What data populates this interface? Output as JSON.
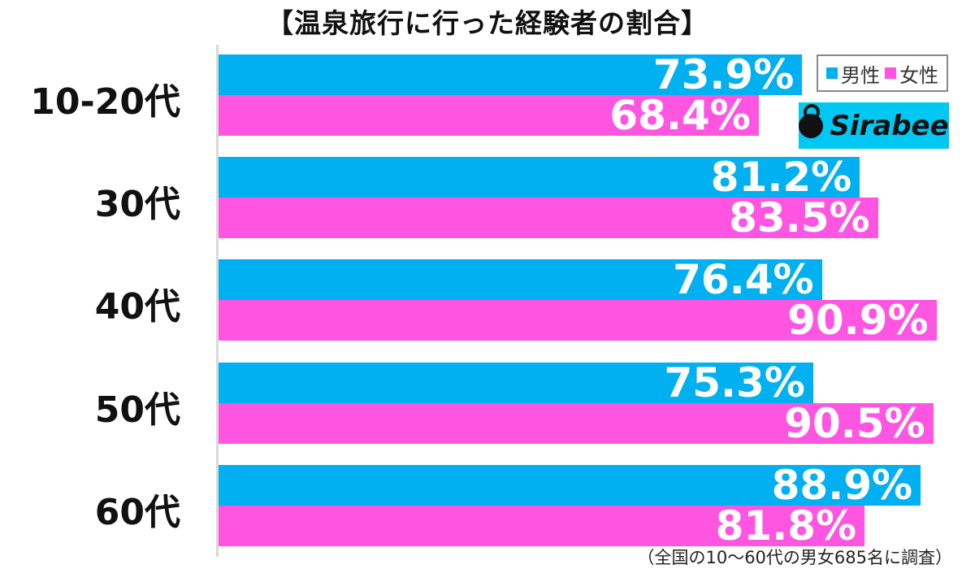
{
  "title": "【温泉旅行に行った経験者の割合】",
  "legend": {
    "male": "男性",
    "female": "女性"
  },
  "colors": {
    "male": "#00b0f0",
    "female": "#ff55e1"
  },
  "logo": {
    "text": "Sirabee"
  },
  "footnote": "（全国の10〜60代の男女685名に調査）",
  "groups": [
    {
      "label": "10-20代",
      "male": "73.9%",
      "female": "68.4%"
    },
    {
      "label": "30代",
      "male": "81.2%",
      "female": "83.5%"
    },
    {
      "label": "40代",
      "male": "76.4%",
      "female": "90.9%"
    },
    {
      "label": "50代",
      "male": "75.3%",
      "female": "90.5%"
    },
    {
      "label": "60代",
      "male": "88.9%",
      "female": "81.8%"
    }
  ],
  "chart_data": {
    "type": "bar",
    "orientation": "horizontal",
    "title": "【温泉旅行に行った経験者の割合】",
    "categories": [
      "10-20代",
      "30代",
      "40代",
      "50代",
      "60代"
    ],
    "series": [
      {
        "name": "男性",
        "color": "#00b0f0",
        "values": [
          73.9,
          81.2,
          76.4,
          75.3,
          88.9
        ]
      },
      {
        "name": "女性",
        "color": "#ff55e1",
        "values": [
          68.4,
          83.5,
          90.9,
          90.5,
          81.8
        ]
      }
    ],
    "xlabel": "",
    "ylabel": "",
    "xlim": [
      0,
      100
    ],
    "grid": false,
    "legend_position": "top-right",
    "annotations": [
      "（全国の10〜60代の男女685名に調査）"
    ]
  }
}
